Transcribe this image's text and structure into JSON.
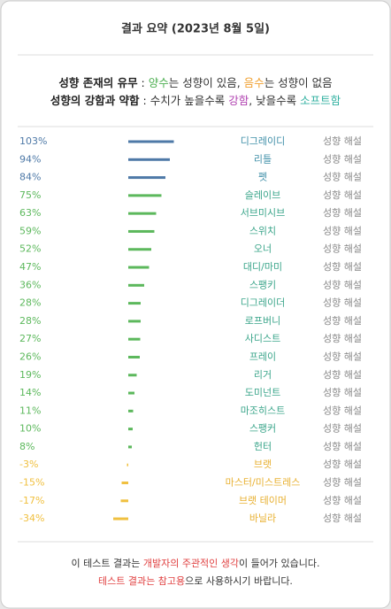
{
  "chart_data": {
    "type": "bar",
    "title": "결과 요약 (2023년 8월 5일)",
    "legend_lines": [
      [
        {
          "text": "성향 존재의 유무",
          "color": "#222222",
          "bold": true
        },
        {
          "text": " : ",
          "color": "#222222"
        },
        {
          "text": "양수",
          "color": "#4caf50"
        },
        {
          "text": "는 성향이 있음, ",
          "color": "#333333"
        },
        {
          "text": "음수",
          "color": "#f0a030"
        },
        {
          "text": "는 성향이 없음",
          "color": "#333333"
        }
      ],
      [
        {
          "text": "성향의 강함과 약함",
          "color": "#222222",
          "bold": true
        },
        {
          "text": " : ",
          "color": "#222222"
        },
        {
          "text": "수치가 높을수록 ",
          "color": "#333333"
        },
        {
          "text": "강함",
          "color": "#b040b0"
        },
        {
          "text": ", 낮을수록 ",
          "color": "#333333"
        },
        {
          "text": "소프트함",
          "color": "#30b0a0"
        }
      ]
    ],
    "categories": [
      "디그레이디",
      "리틀",
      "펫",
      "슬레이브",
      "서브미시브",
      "스위치",
      "오너",
      "대디/마미",
      "스팽키",
      "디그레이더",
      "로프버니",
      "사디스트",
      "프레이",
      "리거",
      "도미넌트",
      "마조히스트",
      "스팽커",
      "헌터",
      "브랫",
      "마스터/미스트레스",
      "브랫 테이머",
      "바닐라"
    ],
    "values": [
      103,
      94,
      84,
      75,
      63,
      59,
      52,
      47,
      36,
      28,
      28,
      27,
      26,
      19,
      14,
      11,
      10,
      8,
      -3,
      -15,
      -17,
      -34
    ],
    "value_labels": [
      "103%",
      "94%",
      "84%",
      "75%",
      "63%",
      "59%",
      "52%",
      "47%",
      "36%",
      "28%",
      "28%",
      "27%",
      "26%",
      "19%",
      "14%",
      "11%",
      "10%",
      "8%",
      "-3%",
      "-15%",
      "-17%",
      "-34%"
    ],
    "colors": [
      "#4e79a7",
      "#4e79a7",
      "#4e79a7",
      "#5cb85c",
      "#5cb85c",
      "#5cb85c",
      "#5cb85c",
      "#5cb85c",
      "#5cb85c",
      "#5cb85c",
      "#5cb85c",
      "#5cb85c",
      "#5cb85c",
      "#5cb85c",
      "#5cb85c",
      "#5cb85c",
      "#5cb85c",
      "#5cb85c",
      "#f0c040",
      "#f0c040",
      "#f0c040",
      "#f0c040"
    ],
    "name_colors": [
      "#3f8fa8",
      "#3f8fa8",
      "#3f8fa8",
      "#3aa58a",
      "#3aa58a",
      "#3aa58a",
      "#3aa58a",
      "#3aa58a",
      "#3aa58a",
      "#3aa58a",
      "#3aa58a",
      "#3aa58a",
      "#3aa58a",
      "#3aa58a",
      "#3aa58a",
      "#3aa58a",
      "#3aa58a",
      "#3aa58a",
      "#e8b030",
      "#e8b030",
      "#e8b030",
      "#e8b030"
    ],
    "link_labels": [
      "성향 해설",
      "성향 해설",
      "성향 해설",
      "성향 해설",
      "성향 해설",
      "성향 해설",
      "성향 해설",
      "성향 해설",
      "성향 해설",
      "성향 해설",
      "성향 해설",
      "성향 해설",
      "성향 해설",
      "성향 해설",
      "성향 해설",
      "성향 해설",
      "성향 해설",
      "성향 해설",
      "성향 해설",
      "성향 해설",
      "성향 해설",
      "성향 해설"
    ],
    "footer_lines": [
      [
        {
          "text": "이 테스트 결과는 ",
          "color": "#333333"
        },
        {
          "text": "개발자의 주관적인 생각",
          "color": "#e04040"
        },
        {
          "text": "이 들어가 있습니다.",
          "color": "#333333"
        }
      ],
      [
        {
          "text": "테스트 결과는 참고용",
          "color": "#e04040"
        },
        {
          "text": "으로 사용하시기 바랍니다.",
          "color": "#333333"
        }
      ]
    ]
  }
}
